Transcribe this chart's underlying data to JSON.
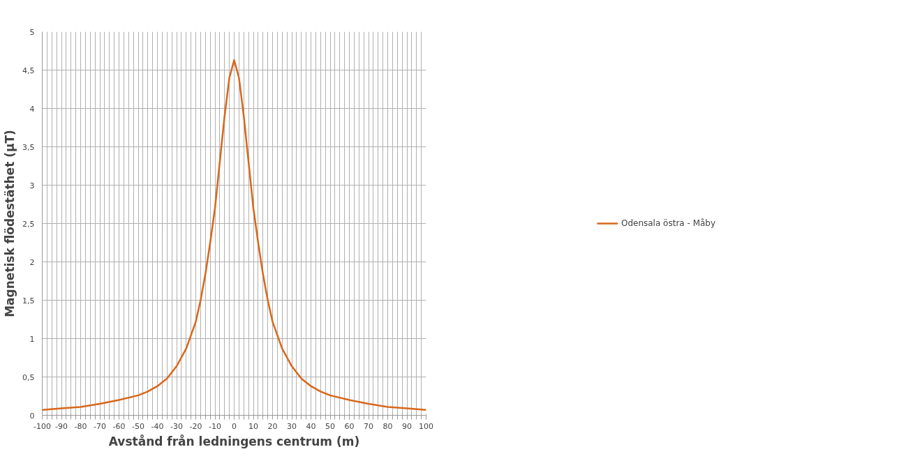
{
  "chart_data": {
    "type": "line",
    "xlabel": "Avstånd från ledningens centrum (m)",
    "ylabel": "Magnetisk flödestäthet (µT)",
    "x": [
      -100,
      -90,
      -80,
      -70,
      -60,
      -50,
      -45,
      -40,
      -35,
      -30,
      -25,
      -20,
      -17.5,
      -15,
      -12.5,
      -10,
      -7.5,
      -5,
      -2.5,
      0,
      2.5,
      5,
      7.5,
      10,
      12.5,
      15,
      17.5,
      20,
      25,
      30,
      35,
      40,
      45,
      50,
      60,
      70,
      80,
      90,
      100
    ],
    "series": [
      {
        "name": "Odensala östra - Måby",
        "color": "#d9661a",
        "values": [
          0.07,
          0.09,
          0.11,
          0.15,
          0.2,
          0.26,
          0.31,
          0.38,
          0.48,
          0.64,
          0.87,
          1.22,
          1.5,
          1.84,
          2.25,
          2.7,
          3.3,
          3.9,
          4.4,
          4.63,
          4.4,
          3.9,
          3.3,
          2.7,
          2.25,
          1.84,
          1.5,
          1.22,
          0.87,
          0.64,
          0.48,
          0.38,
          0.31,
          0.26,
          0.2,
          0.15,
          0.11,
          0.09,
          0.07
        ]
      }
    ],
    "xlim": [
      -100,
      100
    ],
    "xticks": [
      -100,
      {
        "value": -97.5,
        "label": null
      },
      {
        "value": -95,
        "label": null
      },
      {
        "value": -92.5,
        "label": null
      },
      -90,
      {
        "value": -87.5,
        "label": null
      },
      {
        "value": -85,
        "label": null
      },
      {
        "value": -82.5,
        "label": null
      },
      -80,
      {
        "value": -77.5,
        "label": null
      },
      {
        "value": -75,
        "label": null
      },
      {
        "value": -72.5,
        "label": null
      },
      -70,
      {
        "value": -67.5,
        "label": null
      },
      {
        "value": -65,
        "label": null
      },
      {
        "value": -62.5,
        "label": null
      },
      -60,
      {
        "value": -57.5,
        "label": null
      },
      {
        "value": -55,
        "label": null
      },
      {
        "value": -52.5,
        "label": null
      },
      -50,
      {
        "value": -47.5,
        "label": null
      },
      {
        "value": -45,
        "label": null
      },
      {
        "value": -42.5,
        "label": null
      },
      -40,
      {
        "value": -37.5,
        "label": null
      },
      {
        "value": -35,
        "label": null
      },
      {
        "value": -32.5,
        "label": null
      },
      -30,
      {
        "value": -27.5,
        "label": null
      },
      {
        "value": -25,
        "label": null
      },
      {
        "value": -22.5,
        "label": null
      },
      -20,
      {
        "value": -17.5,
        "label": null
      },
      {
        "value": -15,
        "label": null
      },
      {
        "value": -12.5,
        "label": null
      },
      -10,
      {
        "value": -7.5,
        "label": null
      },
      {
        "value": -5,
        "label": null
      },
      {
        "value": -2.5,
        "label": null
      },
      0,
      {
        "value": 2.5,
        "label": null
      },
      {
        "value": 5,
        "label": null
      },
      {
        "value": 7.5,
        "label": null
      },
      10,
      {
        "value": 12.5,
        "label": null
      },
      {
        "value": 15,
        "label": null
      },
      {
        "value": 17.5,
        "label": null
      },
      20,
      {
        "value": 22.5,
        "label": null
      },
      {
        "value": 25,
        "label": null
      },
      {
        "value": 27.5,
        "label": null
      },
      30,
      {
        "value": 32.5,
        "label": null
      },
      {
        "value": 35,
        "label": null
      },
      {
        "value": 37.5,
        "label": null
      },
      40,
      {
        "value": 42.5,
        "label": null
      },
      {
        "value": 45,
        "label": null
      },
      {
        "value": 47.5,
        "label": null
      },
      50,
      {
        "value": 52.5,
        "label": null
      },
      {
        "value": 55,
        "label": null
      },
      {
        "value": 57.5,
        "label": null
      },
      60,
      {
        "value": 62.5,
        "label": null
      },
      {
        "value": 65,
        "label": null
      },
      {
        "value": 67.5,
        "label": null
      },
      70,
      {
        "value": 72.5,
        "label": null
      },
      {
        "value": 75,
        "label": null
      },
      {
        "value": 77.5,
        "label": null
      },
      80,
      {
        "value": 82.5,
        "label": null
      },
      {
        "value": 85,
        "label": null
      },
      {
        "value": 87.5,
        "label": null
      },
      90,
      {
        "value": 92.5,
        "label": null
      },
      {
        "value": 95,
        "label": null
      },
      {
        "value": 97.5,
        "label": null
      },
      100
    ],
    "ylim": [
      0,
      5
    ],
    "yticks": [
      0,
      {
        "value": 0.5,
        "label": "0,5"
      },
      1,
      {
        "value": 1.5,
        "label": "1,5"
      },
      2,
      {
        "value": 2.5,
        "label": "2,5"
      },
      3,
      {
        "value": 3.5,
        "label": "3,5"
      },
      4,
      {
        "value": 4.5,
        "label": "4,5"
      },
      5
    ],
    "grid": true,
    "legend": "right",
    "marker": "none",
    "line_style": "solid"
  }
}
